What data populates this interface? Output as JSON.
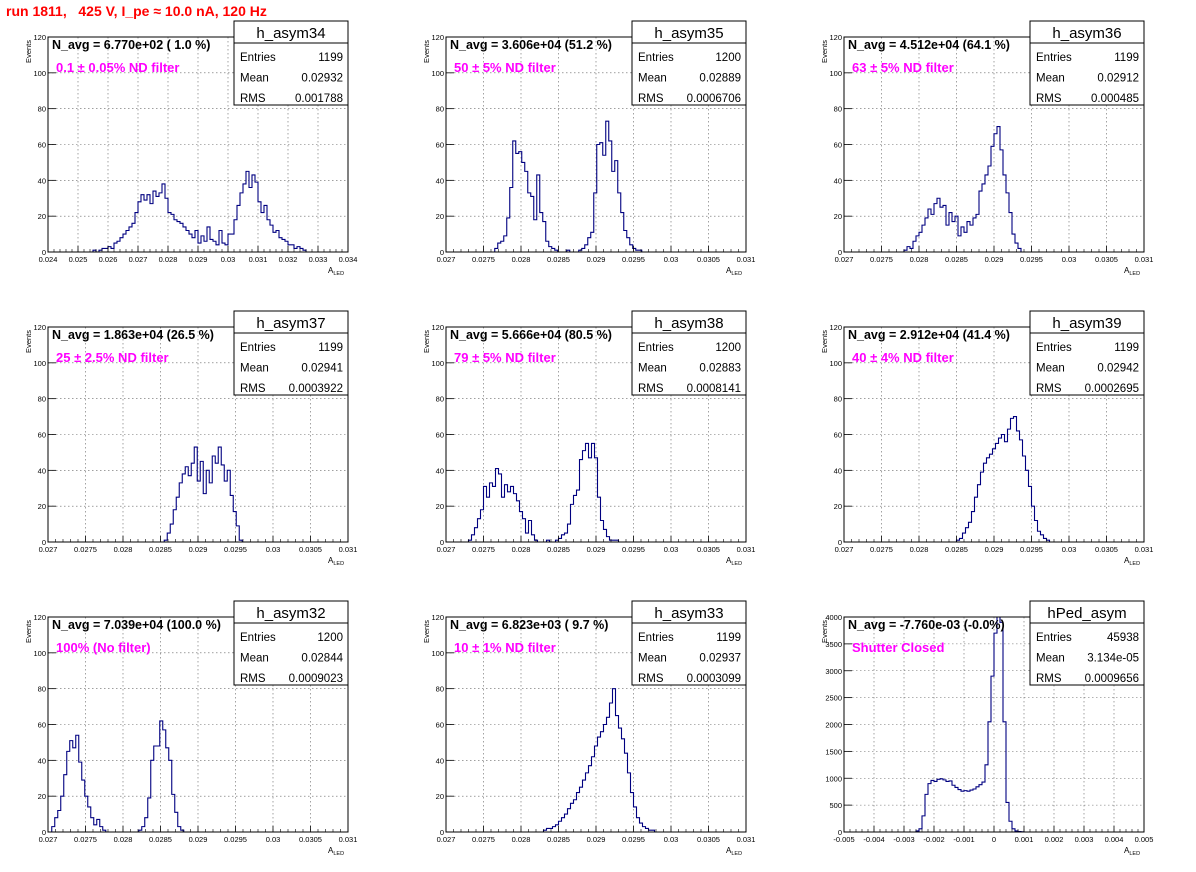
{
  "run_title": "run 1811,   425 V, I_pe ≈ 10.0 nA, 120 Hz",
  "stats_labels": [
    "Entries",
    "Mean",
    "RMS"
  ],
  "colors": {
    "hist": "#000080",
    "annotation": "#ff00ff",
    "title": "#ff0000"
  },
  "chart_data": [
    {
      "type": "bar",
      "name": "h_asym34",
      "navg": "N_avg = 6.770e+02 ( 1.0 %)",
      "filter": "0.1 ± 0.05% ND filter",
      "entries": "1199",
      "mean": "0.02932",
      "rms": "0.001788",
      "ylabel": "Events",
      "xlabel": "A",
      "xlabel_sub": "LED",
      "xlim": [
        0.024,
        0.034
      ],
      "ylim": [
        0,
        120
      ],
      "xticks": [
        "0.024",
        "0.025",
        "0.026",
        "0.027",
        "0.028",
        "0.029",
        "0.03",
        "0.031",
        "0.032",
        "0.033",
        "0.034"
      ],
      "yticks": [
        "0",
        "20",
        "40",
        "60",
        "80",
        "100",
        "120"
      ],
      "bin_start": 0.0255,
      "bin_width": 0.0001,
      "values": [
        1,
        0,
        1,
        2,
        2,
        3,
        2,
        5,
        6,
        8,
        10,
        12,
        14,
        16,
        22,
        28,
        32,
        29,
        32,
        27,
        34,
        31,
        33,
        38,
        30,
        22,
        21,
        18,
        17,
        16,
        14,
        12,
        10,
        8,
        12,
        5,
        9,
        6,
        14,
        7,
        6,
        4,
        12,
        5,
        4,
        10,
        10,
        18,
        26,
        33,
        38,
        45,
        36,
        43,
        39,
        28,
        22,
        26,
        18,
        15,
        11,
        12,
        8,
        7,
        6,
        4,
        4,
        2,
        3,
        2,
        1
      ]
    },
    {
      "type": "bar",
      "name": "h_asym35",
      "navg": "N_avg = 3.606e+04 (51.2 %)",
      "filter": "50 ± 5% ND filter",
      "entries": "1200",
      "mean": "0.02889",
      "rms": "0.0006706",
      "ylabel": "Events",
      "xlabel": "A",
      "xlabel_sub": "LED",
      "xlim": [
        0.027,
        0.031
      ],
      "ylim": [
        0,
        120
      ],
      "xticks": [
        "0.027",
        "0.0275",
        "0.028",
        "0.0285",
        "0.029",
        "0.0295",
        "0.03",
        "0.0305",
        "0.031"
      ],
      "yticks": [
        "0",
        "20",
        "40",
        "60",
        "80",
        "100",
        "120"
      ],
      "bin_start": 0.02765,
      "bin_width": 4e-05,
      "values": [
        2,
        5,
        6,
        9,
        19,
        36,
        62,
        55,
        56,
        50,
        45,
        33,
        31,
        18,
        43,
        22,
        17,
        6,
        3,
        2,
        1,
        0,
        0,
        0,
        1,
        0,
        0,
        0,
        1,
        2,
        4,
        8,
        11,
        33,
        60,
        61,
        54,
        73,
        62,
        45,
        51,
        33,
        22,
        12,
        8,
        4,
        2,
        1,
        1
      ]
    },
    {
      "type": "bar",
      "name": "h_asym36",
      "navg": "N_avg = 4.512e+04 (64.1 %)",
      "filter": "63 ± 5% ND filter",
      "entries": "1199",
      "mean": "0.02912",
      "rms": "0.000485",
      "ylabel": "Events",
      "xlabel": "A",
      "xlabel_sub": "LED",
      "xlim": [
        0.027,
        0.031
      ],
      "ylim": [
        0,
        120
      ],
      "xticks": [
        "0.027",
        "0.0275",
        "0.028",
        "0.0285",
        "0.029",
        "0.0295",
        "0.03",
        "0.0305",
        "0.031"
      ],
      "yticks": [
        "0",
        "20",
        "40",
        "60",
        "80",
        "100",
        "120"
      ],
      "bin_start": 0.0278,
      "bin_width": 4e-05,
      "values": [
        1,
        3,
        2,
        6,
        9,
        11,
        15,
        19,
        24,
        21,
        27,
        30,
        25,
        26,
        15,
        22,
        17,
        20,
        9,
        14,
        11,
        17,
        15,
        19,
        21,
        34,
        38,
        43,
        48,
        59,
        66,
        70,
        57,
        43,
        33,
        22,
        10,
        5,
        2
      ]
    },
    {
      "type": "bar",
      "name": "h_asym37",
      "navg": "N_avg = 1.863e+04 (26.5 %)",
      "filter": "25 ± 2.5% ND filter",
      "entries": "1199",
      "mean": "0.02941",
      "rms": "0.0003922",
      "ylabel": "Events",
      "xlabel": "A",
      "xlabel_sub": "LED",
      "xlim": [
        0.027,
        0.031
      ],
      "ylim": [
        0,
        120
      ],
      "xticks": [
        "0.027",
        "0.0275",
        "0.028",
        "0.0285",
        "0.029",
        "0.0295",
        "0.03",
        "0.0305",
        "0.031"
      ],
      "yticks": [
        "0",
        "20",
        "40",
        "60",
        "80",
        "100",
        "120"
      ],
      "bin_start": 0.02855,
      "bin_width": 4e-05,
      "values": [
        1,
        5,
        10,
        18,
        25,
        33,
        38,
        42,
        37,
        44,
        53,
        34,
        45,
        27,
        40,
        33,
        48,
        44,
        53,
        43,
        34,
        40,
        26,
        17,
        9,
        1
      ]
    },
    {
      "type": "bar",
      "name": "h_asym38",
      "navg": "N_avg = 5.666e+04 (80.5 %)",
      "filter": "79 ± 5% ND filter",
      "entries": "1200",
      "mean": "0.02883",
      "rms": "0.0008141",
      "ylabel": "Events",
      "xlabel": "A",
      "xlabel_sub": "LED",
      "xlim": [
        0.027,
        0.031
      ],
      "ylim": [
        0,
        120
      ],
      "xticks": [
        "0.027",
        "0.0275",
        "0.028",
        "0.0285",
        "0.029",
        "0.0295",
        "0.03",
        "0.0305",
        "0.031"
      ],
      "yticks": [
        "0",
        "20",
        "40",
        "60",
        "80",
        "100",
        "120"
      ],
      "bin_start": 0.0273,
      "bin_width": 4e-05,
      "values": [
        1,
        4,
        8,
        13,
        18,
        31,
        25,
        33,
        31,
        41,
        38,
        25,
        32,
        28,
        31,
        27,
        23,
        17,
        13,
        5,
        12,
        4,
        1,
        0,
        0,
        0,
        1,
        0,
        0,
        1,
        2,
        4,
        5,
        10,
        21,
        26,
        29,
        46,
        51,
        55,
        47,
        55,
        47,
        25,
        12,
        7,
        3,
        1,
        1,
        1
      ]
    },
    {
      "type": "bar",
      "name": "h_asym39",
      "navg": "N_avg = 2.912e+04 (41.4 %)",
      "filter": "40 ± 4% ND filter",
      "entries": "1199",
      "mean": "0.02942",
      "rms": "0.0002695",
      "ylabel": "Events",
      "xlabel": "A",
      "xlabel_sub": "LED",
      "xlim": [
        0.027,
        0.031
      ],
      "ylim": [
        0,
        120
      ],
      "xticks": [
        "0.027",
        "0.0275",
        "0.028",
        "0.0285",
        "0.029",
        "0.0295",
        "0.03",
        "0.0305",
        "0.031"
      ],
      "yticks": [
        "0",
        "20",
        "40",
        "60",
        "80",
        "100",
        "120"
      ],
      "bin_start": 0.0285,
      "bin_width": 4e-05,
      "values": [
        1,
        2,
        5,
        8,
        11,
        17,
        25,
        32,
        39,
        44,
        47,
        49,
        52,
        55,
        58,
        60,
        56,
        63,
        69,
        70,
        62,
        57,
        48,
        40,
        31,
        20,
        12,
        6,
        4,
        2,
        1
      ]
    },
    {
      "type": "bar",
      "name": "h_asym32",
      "navg": "N_avg = 7.039e+04 (100.0 %)",
      "filter": "100% (No filter)",
      "entries": "1200",
      "mean": "0.02844",
      "rms": "0.0009023",
      "ylabel": "Events",
      "xlabel": "A",
      "xlabel_sub": "LED",
      "xlim": [
        0.027,
        0.031
      ],
      "ylim": [
        0,
        120
      ],
      "xticks": [
        "0.027",
        "0.0275",
        "0.028",
        "0.0285",
        "0.029",
        "0.0295",
        "0.03",
        "0.0305",
        "0.031"
      ],
      "yticks": [
        "0",
        "20",
        "40",
        "60",
        "80",
        "100",
        "120"
      ],
      "bin_start": 0.02705,
      "bin_width": 4e-05,
      "values": [
        3,
        8,
        12,
        20,
        32,
        45,
        51,
        47,
        54,
        39,
        29,
        20,
        14,
        8,
        4,
        7,
        3,
        1,
        0,
        0,
        0,
        0,
        0,
        0,
        0,
        0,
        0,
        0,
        0,
        1,
        3,
        8,
        19,
        40,
        48,
        48,
        62,
        57,
        47,
        40,
        21,
        11,
        3,
        1
      ]
    },
    {
      "type": "bar",
      "name": "h_asym33",
      "navg": "N_avg = 6.823e+03 ( 9.7 %)",
      "filter": "10 ± 1% ND filter",
      "entries": "1199",
      "mean": "0.02937",
      "rms": "0.0003099",
      "ylabel": "Events",
      "xlabel": "A",
      "xlabel_sub": "LED",
      "xlim": [
        0.027,
        0.031
      ],
      "ylim": [
        0,
        120
      ],
      "xticks": [
        "0.027",
        "0.0275",
        "0.028",
        "0.0285",
        "0.029",
        "0.0295",
        "0.03",
        "0.0305",
        "0.031"
      ],
      "yticks": [
        "0",
        "20",
        "40",
        "60",
        "80",
        "100",
        "120"
      ],
      "bin_start": 0.0283,
      "bin_width": 4e-05,
      "values": [
        1,
        2,
        2,
        3,
        4,
        6,
        8,
        10,
        13,
        16,
        18,
        22,
        25,
        29,
        33,
        37,
        42,
        48,
        53,
        56,
        60,
        64,
        72,
        80,
        65,
        58,
        52,
        44,
        33,
        22,
        14,
        8,
        5,
        3,
        2,
        1,
        1
      ]
    },
    {
      "type": "bar",
      "name": "hPed_asym",
      "navg": "N_avg = -7.760e-03 (-0.0%)",
      "filter": "Shutter Closed",
      "entries": "45938",
      "mean": "3.134e-05",
      "rms": "0.0009656",
      "ylabel": "Events",
      "xlabel": "A",
      "xlabel_sub": "LED",
      "xlim": [
        -0.005,
        0.005
      ],
      "ylim": [
        0,
        4000
      ],
      "xticks": [
        "-0.005",
        "-0.004",
        "-0.003",
        "-0.002",
        "-0.001",
        "0",
        "0.001",
        "0.002",
        "0.003",
        "0.004",
        "0.005"
      ],
      "yticks": [
        "0",
        "500",
        "1000",
        "1500",
        "2000",
        "2500",
        "3000",
        "3500",
        "4000"
      ],
      "bin_start": -0.0026,
      "bin_width": 0.0001,
      "values": [
        20,
        60,
        300,
        700,
        900,
        960,
        940,
        980,
        990,
        970,
        940,
        950,
        870,
        830,
        790,
        760,
        770,
        760,
        780,
        800,
        840,
        880,
        930,
        1250,
        2050,
        2900,
        3700,
        4000,
        3900,
        2050,
        550,
        200,
        60,
        20,
        8,
        3
      ]
    }
  ]
}
